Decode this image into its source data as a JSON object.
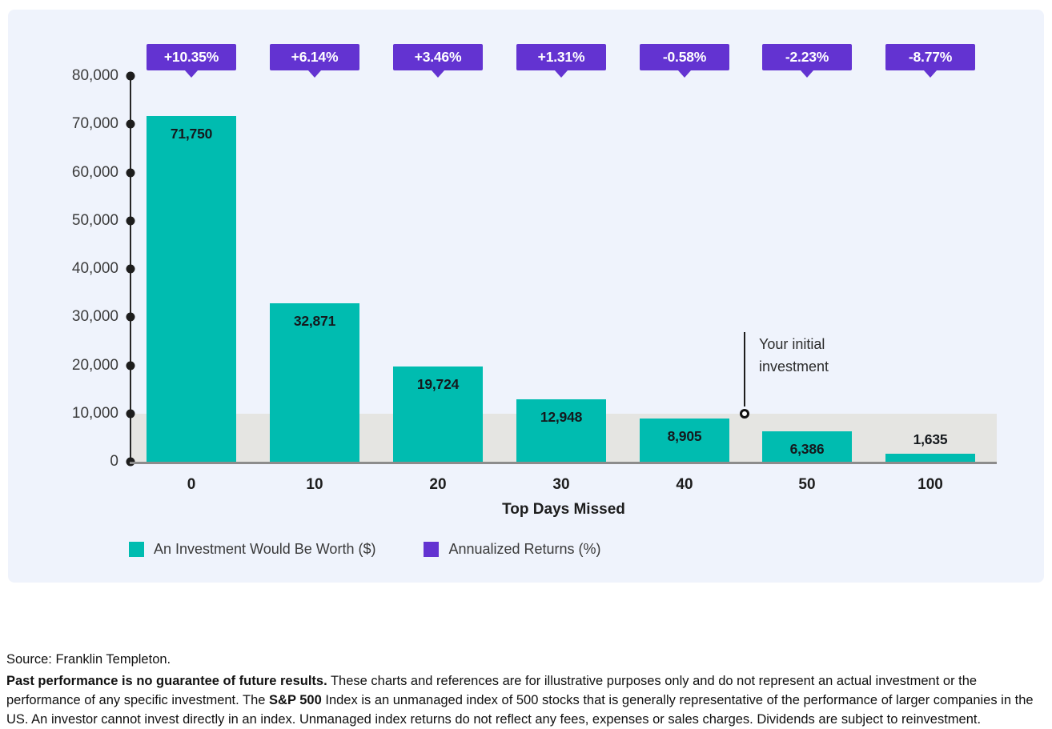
{
  "colors": {
    "panel_bg": "#EFF3FC",
    "teal": "#00BCB0",
    "purple": "#6333D1",
    "band_gray": "#E5E5E2",
    "axis_black": "#262626",
    "baseline_gray": "#8C8C8C"
  },
  "chart_data": {
    "type": "bar",
    "title": "",
    "categories": [
      "0",
      "10",
      "20",
      "30",
      "40",
      "50",
      "100"
    ],
    "series": [
      {
        "name": "An Investment Would Be Worth ($)",
        "values": [
          71750,
          32871,
          19724,
          12948,
          8905,
          6386,
          1635
        ],
        "labels": [
          "71,750",
          "32,871",
          "19,724",
          "12,948",
          "8,905",
          "6,386",
          "1,635"
        ],
        "color": "#00BCB0"
      },
      {
        "name": "Annualized Returns (%)",
        "values": [
          10.35,
          6.14,
          3.46,
          1.31,
          -0.58,
          -2.23,
          -8.77
        ],
        "labels": [
          "+10.35%",
          "+6.14%",
          "+3.46%",
          "+1.31%",
          "-0.58%",
          "-2.23%",
          "-8.77%"
        ],
        "color": "#6333D1"
      }
    ],
    "xlabel": "Top Days Missed",
    "ylabel": "",
    "ylim": [
      0,
      80000
    ],
    "yticks": [
      {
        "value": 80000,
        "label": "80,000"
      },
      {
        "value": 70000,
        "label": "70,000"
      },
      {
        "value": 60000,
        "label": "60,000"
      },
      {
        "value": 50000,
        "label": "50,000"
      },
      {
        "value": 40000,
        "label": "40,000"
      },
      {
        "value": 30000,
        "label": "30,000"
      },
      {
        "value": 20000,
        "label": "20,000"
      },
      {
        "value": 10000,
        "label": "10,000"
      },
      {
        "value": 0,
        "label": "0"
      }
    ],
    "grid": false,
    "legend_position": "bottom",
    "initial_investment_band": {
      "from": 0,
      "to": 10000
    },
    "annotation": {
      "line1": "Your initial",
      "line2": "investment",
      "at_value": 10000
    }
  },
  "legend": {
    "items": [
      {
        "label": "An Investment Would Be Worth ($)",
        "color": "#00BCB0"
      },
      {
        "label": "Annualized Returns (%)",
        "color": "#6333D1"
      }
    ]
  },
  "footer": {
    "source": "Source: Franklin Templeton.",
    "disclaimer_bold1": "Past performance is no guarantee of future results.",
    "disclaimer_text1": " These charts and references are for illustrative purposes only and do not represent an actual investment or the performance of any specific investment. The ",
    "disclaimer_bold2": "S&P 500",
    "disclaimer_text2": " Index is an unmanaged index of 500 stocks that is generally representative of the performance of larger companies in the US. An investor cannot invest directly in an index. Unmanaged index returns do not reflect any fees, expenses or sales charges. Dividends are subject to reinvestment."
  }
}
